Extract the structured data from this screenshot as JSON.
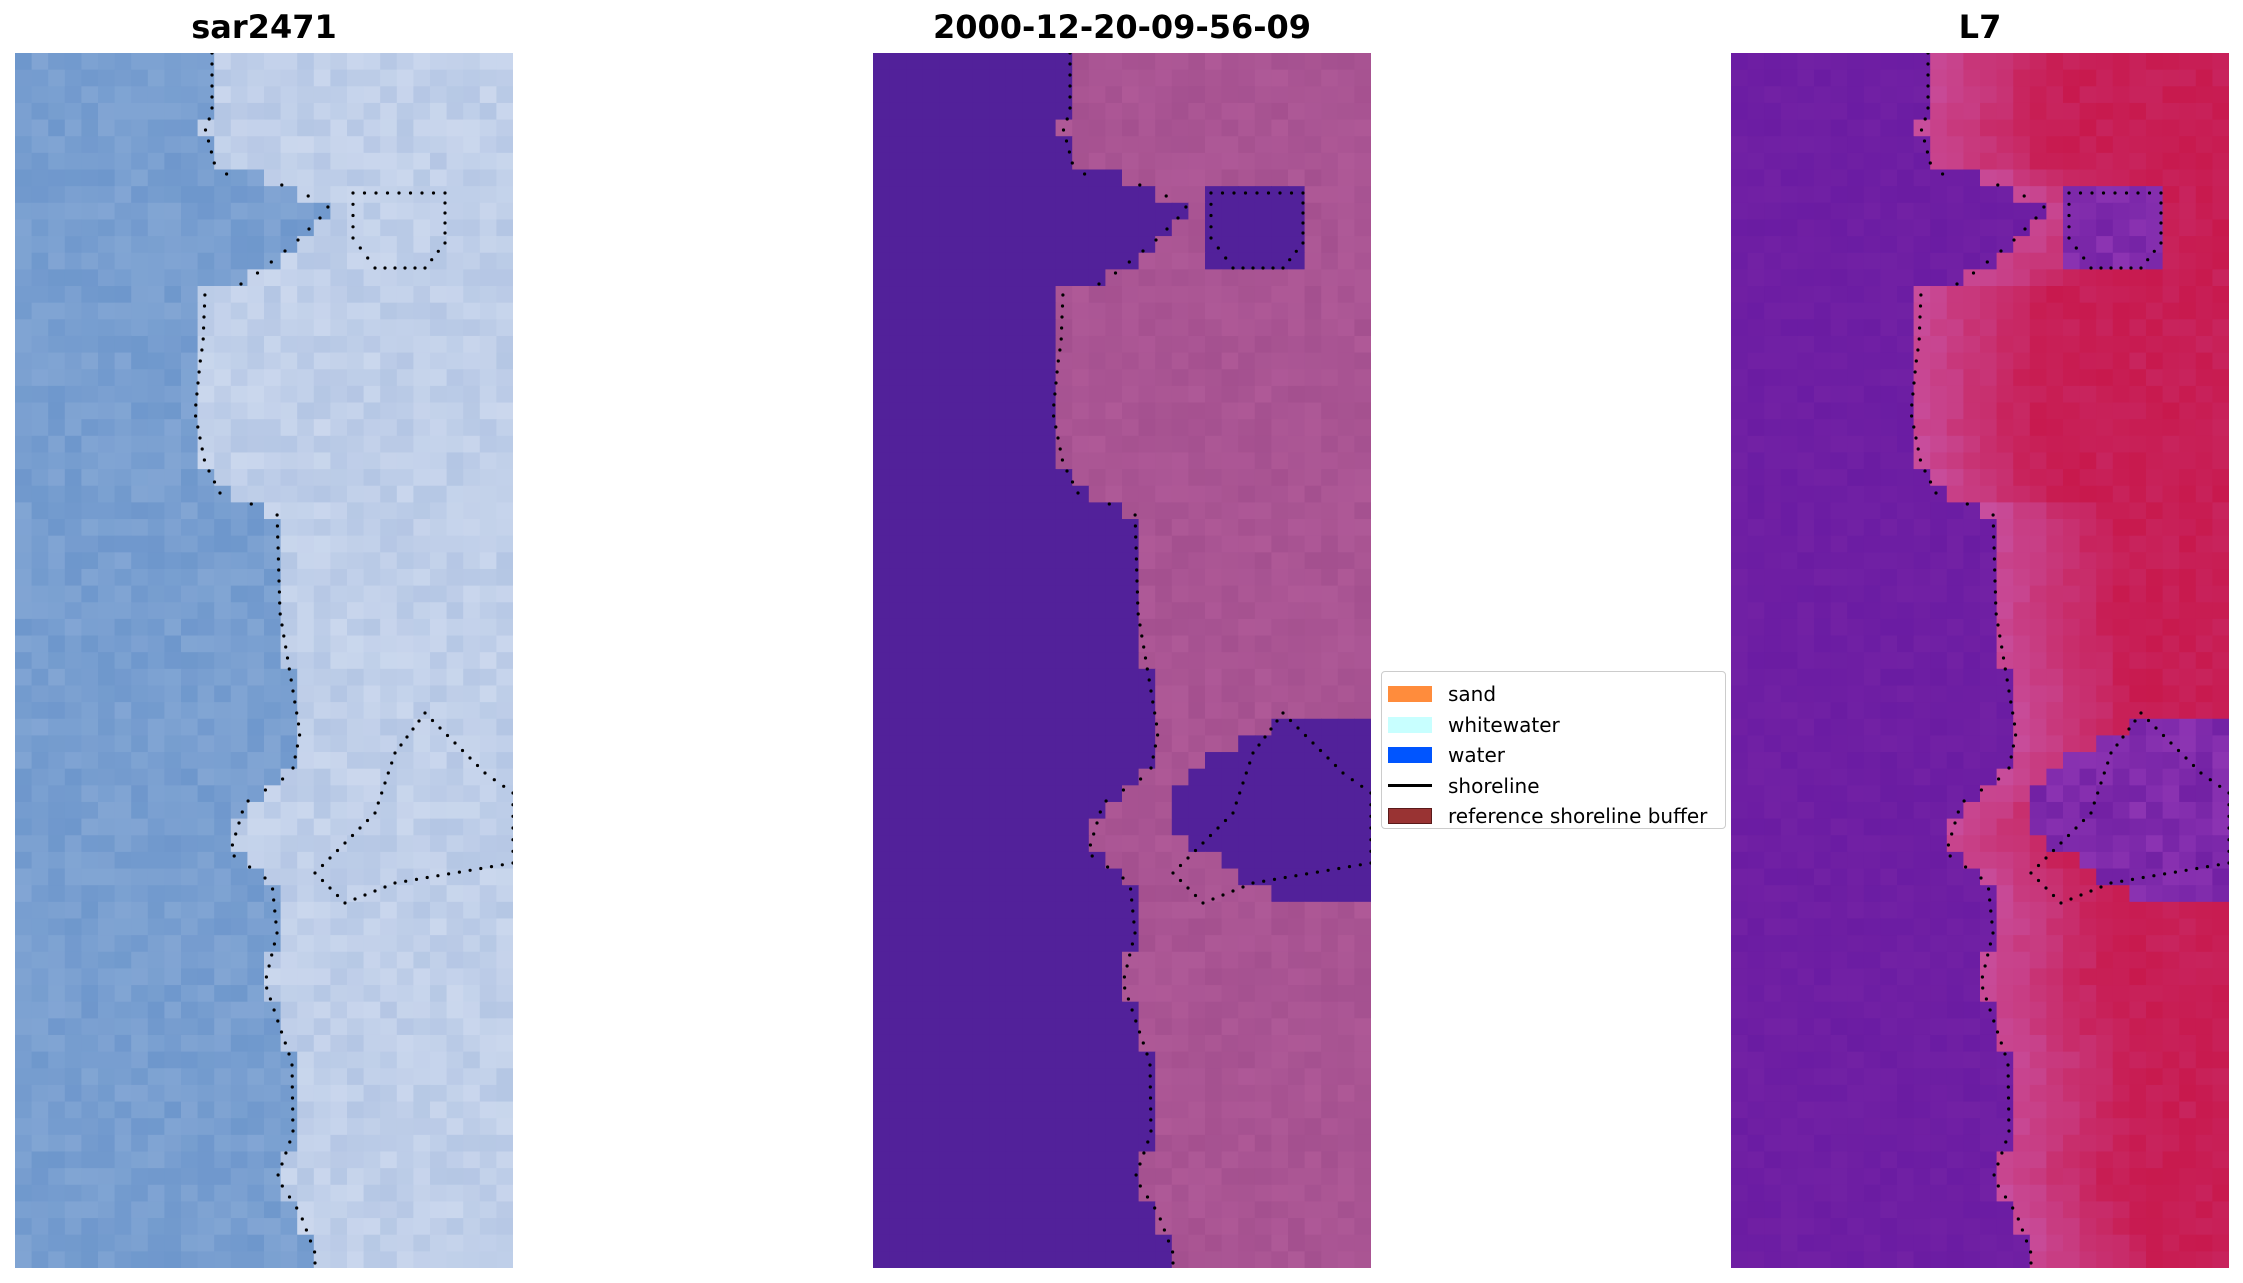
{
  "panels": [
    {
      "title": "sar2471",
      "kind": "rgb"
    },
    {
      "title": "2000-12-20-09-56-09",
      "kind": "classified"
    },
    {
      "title": "L7",
      "kind": "index"
    }
  ],
  "legend": {
    "items": [
      {
        "label": "sand",
        "color": "#ff8c3c",
        "kind": "patch"
      },
      {
        "label": "whitewater",
        "color": "#c8ffff",
        "kind": "patch"
      },
      {
        "label": "water",
        "color": "#0055ff",
        "kind": "patch"
      },
      {
        "label": "shoreline",
        "color": "#000000",
        "kind": "line"
      },
      {
        "label": "reference shoreline buffer",
        "color": "#993333",
        "kind": "patch"
      }
    ]
  },
  "colors": {
    "water_class": "#52219a",
    "sand_class": "#a4508f",
    "rgb_water": "#6e97cc",
    "rgb_land": "#b4c6e4",
    "index_water": "#7221a4",
    "index_land": "#c8194d",
    "shoreline_dots": "#000000"
  }
}
